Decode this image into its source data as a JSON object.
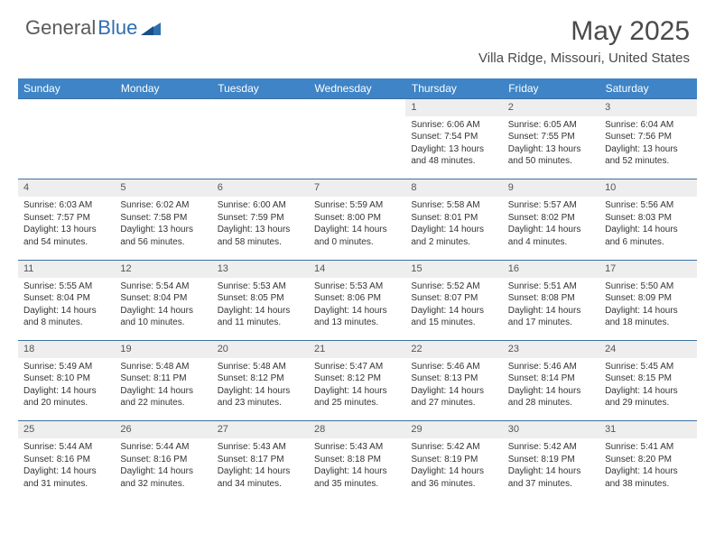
{
  "logo": {
    "text1": "General",
    "text2": "Blue"
  },
  "title": "May 2025",
  "location": "Villa Ridge, Missouri, United States",
  "colors": {
    "header_bg": "#3e84c6",
    "header_text": "#ffffff",
    "daynum_bg": "#eeeeee",
    "row_border": "#3e6fa0",
    "body_text": "#333333",
    "logo_gray": "#5a5a5a",
    "logo_blue": "#2f6fae"
  },
  "type": "calendar-table",
  "columns": [
    "Sunday",
    "Monday",
    "Tuesday",
    "Wednesday",
    "Thursday",
    "Friday",
    "Saturday"
  ],
  "weeks": [
    [
      {
        "n": "",
        "t": ""
      },
      {
        "n": "",
        "t": ""
      },
      {
        "n": "",
        "t": ""
      },
      {
        "n": "",
        "t": ""
      },
      {
        "n": "1",
        "t": "Sunrise: 6:06 AM\nSunset: 7:54 PM\nDaylight: 13 hours and 48 minutes."
      },
      {
        "n": "2",
        "t": "Sunrise: 6:05 AM\nSunset: 7:55 PM\nDaylight: 13 hours and 50 minutes."
      },
      {
        "n": "3",
        "t": "Sunrise: 6:04 AM\nSunset: 7:56 PM\nDaylight: 13 hours and 52 minutes."
      }
    ],
    [
      {
        "n": "4",
        "t": "Sunrise: 6:03 AM\nSunset: 7:57 PM\nDaylight: 13 hours and 54 minutes."
      },
      {
        "n": "5",
        "t": "Sunrise: 6:02 AM\nSunset: 7:58 PM\nDaylight: 13 hours and 56 minutes."
      },
      {
        "n": "6",
        "t": "Sunrise: 6:00 AM\nSunset: 7:59 PM\nDaylight: 13 hours and 58 minutes."
      },
      {
        "n": "7",
        "t": "Sunrise: 5:59 AM\nSunset: 8:00 PM\nDaylight: 14 hours and 0 minutes."
      },
      {
        "n": "8",
        "t": "Sunrise: 5:58 AM\nSunset: 8:01 PM\nDaylight: 14 hours and 2 minutes."
      },
      {
        "n": "9",
        "t": "Sunrise: 5:57 AM\nSunset: 8:02 PM\nDaylight: 14 hours and 4 minutes."
      },
      {
        "n": "10",
        "t": "Sunrise: 5:56 AM\nSunset: 8:03 PM\nDaylight: 14 hours and 6 minutes."
      }
    ],
    [
      {
        "n": "11",
        "t": "Sunrise: 5:55 AM\nSunset: 8:04 PM\nDaylight: 14 hours and 8 minutes."
      },
      {
        "n": "12",
        "t": "Sunrise: 5:54 AM\nSunset: 8:04 PM\nDaylight: 14 hours and 10 minutes."
      },
      {
        "n": "13",
        "t": "Sunrise: 5:53 AM\nSunset: 8:05 PM\nDaylight: 14 hours and 11 minutes."
      },
      {
        "n": "14",
        "t": "Sunrise: 5:53 AM\nSunset: 8:06 PM\nDaylight: 14 hours and 13 minutes."
      },
      {
        "n": "15",
        "t": "Sunrise: 5:52 AM\nSunset: 8:07 PM\nDaylight: 14 hours and 15 minutes."
      },
      {
        "n": "16",
        "t": "Sunrise: 5:51 AM\nSunset: 8:08 PM\nDaylight: 14 hours and 17 minutes."
      },
      {
        "n": "17",
        "t": "Sunrise: 5:50 AM\nSunset: 8:09 PM\nDaylight: 14 hours and 18 minutes."
      }
    ],
    [
      {
        "n": "18",
        "t": "Sunrise: 5:49 AM\nSunset: 8:10 PM\nDaylight: 14 hours and 20 minutes."
      },
      {
        "n": "19",
        "t": "Sunrise: 5:48 AM\nSunset: 8:11 PM\nDaylight: 14 hours and 22 minutes."
      },
      {
        "n": "20",
        "t": "Sunrise: 5:48 AM\nSunset: 8:12 PM\nDaylight: 14 hours and 23 minutes."
      },
      {
        "n": "21",
        "t": "Sunrise: 5:47 AM\nSunset: 8:12 PM\nDaylight: 14 hours and 25 minutes."
      },
      {
        "n": "22",
        "t": "Sunrise: 5:46 AM\nSunset: 8:13 PM\nDaylight: 14 hours and 27 minutes."
      },
      {
        "n": "23",
        "t": "Sunrise: 5:46 AM\nSunset: 8:14 PM\nDaylight: 14 hours and 28 minutes."
      },
      {
        "n": "24",
        "t": "Sunrise: 5:45 AM\nSunset: 8:15 PM\nDaylight: 14 hours and 29 minutes."
      }
    ],
    [
      {
        "n": "25",
        "t": "Sunrise: 5:44 AM\nSunset: 8:16 PM\nDaylight: 14 hours and 31 minutes."
      },
      {
        "n": "26",
        "t": "Sunrise: 5:44 AM\nSunset: 8:16 PM\nDaylight: 14 hours and 32 minutes."
      },
      {
        "n": "27",
        "t": "Sunrise: 5:43 AM\nSunset: 8:17 PM\nDaylight: 14 hours and 34 minutes."
      },
      {
        "n": "28",
        "t": "Sunrise: 5:43 AM\nSunset: 8:18 PM\nDaylight: 14 hours and 35 minutes."
      },
      {
        "n": "29",
        "t": "Sunrise: 5:42 AM\nSunset: 8:19 PM\nDaylight: 14 hours and 36 minutes."
      },
      {
        "n": "30",
        "t": "Sunrise: 5:42 AM\nSunset: 8:19 PM\nDaylight: 14 hours and 37 minutes."
      },
      {
        "n": "31",
        "t": "Sunrise: 5:41 AM\nSunset: 8:20 PM\nDaylight: 14 hours and 38 minutes."
      }
    ]
  ]
}
